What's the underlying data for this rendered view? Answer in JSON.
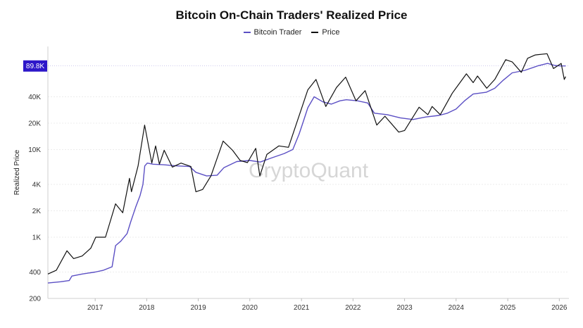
{
  "chart_data": {
    "type": "line",
    "title": "Bitcoin On-Chain Traders' Realized Price",
    "ylabel": "Realized Price",
    "xlabel": "",
    "y_scale": "log",
    "ylim": [
      200,
      150000
    ],
    "xlim": [
      "2016-02-01",
      "2026-03-10"
    ],
    "y_ticks": [
      200,
      400,
      1000,
      2000,
      4000,
      10000,
      20000,
      40000
    ],
    "y_tick_labels": [
      "200",
      "400",
      "1K",
      "2K",
      "4K",
      "10K",
      "20K",
      "40K"
    ],
    "x_ticks": [
      "2017-01-01",
      "2018-01-01",
      "2019-01-01",
      "2020-01-01",
      "2021-01-01",
      "2022-01-01",
      "2023-01-01",
      "2024-01-01",
      "2025-01-01",
      "2026-01-01"
    ],
    "x_tick_labels": [
      "2017",
      "2018",
      "2019",
      "2020",
      "2021",
      "2022",
      "2023",
      "2024",
      "2025",
      "2026"
    ],
    "grid": "horizontal",
    "legend_position": "top-center",
    "current_value_label": "89.8K",
    "watermark": "CryptoQuant",
    "series": [
      {
        "name": "Bitcoin Trader",
        "color": "#5b4fc4",
        "points": [
          [
            "2016-02-01",
            300
          ],
          [
            "2016-05-01",
            310
          ],
          [
            "2016-07-01",
            320
          ],
          [
            "2016-07-20",
            360
          ],
          [
            "2016-10-01",
            380
          ],
          [
            "2017-01-01",
            400
          ],
          [
            "2017-03-01",
            420
          ],
          [
            "2017-05-01",
            460
          ],
          [
            "2017-05-25",
            800
          ],
          [
            "2017-07-01",
            900
          ],
          [
            "2017-08-15",
            1100
          ],
          [
            "2017-09-10",
            1500
          ],
          [
            "2017-10-15",
            2200
          ],
          [
            "2017-11-15",
            3000
          ],
          [
            "2017-12-05",
            4000
          ],
          [
            "2017-12-18",
            6500
          ],
          [
            "2018-01-05",
            7000
          ],
          [
            "2018-02-15",
            6800
          ],
          [
            "2018-05-01",
            6700
          ],
          [
            "2018-08-01",
            6500
          ],
          [
            "2018-11-01",
            6400
          ],
          [
            "2018-12-15",
            5500
          ],
          [
            "2019-03-01",
            5000
          ],
          [
            "2019-05-15",
            5100
          ],
          [
            "2019-07-01",
            6200
          ],
          [
            "2019-10-01",
            7300
          ],
          [
            "2020-01-01",
            7500
          ],
          [
            "2020-03-15",
            7200
          ],
          [
            "2020-06-01",
            8000
          ],
          [
            "2020-09-01",
            9000
          ],
          [
            "2020-11-01",
            10000
          ],
          [
            "2020-12-15",
            15000
          ],
          [
            "2021-01-10",
            20000
          ],
          [
            "2021-02-15",
            30000
          ],
          [
            "2021-04-01",
            40000
          ],
          [
            "2021-06-01",
            35000
          ],
          [
            "2021-08-01",
            33000
          ],
          [
            "2021-10-01",
            36000
          ],
          [
            "2021-11-15",
            37000
          ],
          [
            "2022-02-01",
            36000
          ],
          [
            "2022-04-15",
            34000
          ],
          [
            "2022-06-01",
            26000
          ],
          [
            "2022-09-01",
            25000
          ],
          [
            "2022-12-01",
            23000
          ],
          [
            "2023-03-01",
            22000
          ],
          [
            "2023-06-01",
            23500
          ],
          [
            "2023-09-01",
            24500
          ],
          [
            "2023-11-01",
            26000
          ],
          [
            "2024-01-01",
            29000
          ],
          [
            "2024-03-01",
            36000
          ],
          [
            "2024-05-01",
            43000
          ],
          [
            "2024-08-01",
            45000
          ],
          [
            "2024-10-01",
            50000
          ],
          [
            "2024-12-01",
            62000
          ],
          [
            "2025-02-01",
            75000
          ],
          [
            "2025-05-01",
            80000
          ],
          [
            "2025-08-01",
            90000
          ],
          [
            "2025-10-10",
            96000
          ],
          [
            "2025-12-01",
            91000
          ],
          [
            "2026-01-01",
            90000
          ],
          [
            "2026-02-15",
            89800
          ]
        ]
      },
      {
        "name": "Price",
        "color": "#111111",
        "points": [
          [
            "2016-02-01",
            380
          ],
          [
            "2016-04-01",
            420
          ],
          [
            "2016-06-15",
            700
          ],
          [
            "2016-08-01",
            570
          ],
          [
            "2016-10-01",
            610
          ],
          [
            "2016-12-01",
            750
          ],
          [
            "2017-01-05",
            1000
          ],
          [
            "2017-03-15",
            1000
          ],
          [
            "2017-05-25",
            2400
          ],
          [
            "2017-07-15",
            1900
          ],
          [
            "2017-09-01",
            4700
          ],
          [
            "2017-09-15",
            3300
          ],
          [
            "2017-11-01",
            6500
          ],
          [
            "2017-12-17",
            19000
          ],
          [
            "2018-02-06",
            7000
          ],
          [
            "2018-03-05",
            11000
          ],
          [
            "2018-04-01",
            6800
          ],
          [
            "2018-05-05",
            9800
          ],
          [
            "2018-07-01",
            6300
          ],
          [
            "2018-09-01",
            7000
          ],
          [
            "2018-11-10",
            6400
          ],
          [
            "2018-12-15",
            3300
          ],
          [
            "2019-02-01",
            3500
          ],
          [
            "2019-04-01",
            5000
          ],
          [
            "2019-06-26",
            12500
          ],
          [
            "2019-09-01",
            9800
          ],
          [
            "2019-10-25",
            7500
          ],
          [
            "2019-12-15",
            7100
          ],
          [
            "2020-02-12",
            10300
          ],
          [
            "2020-03-12",
            5000
          ],
          [
            "2020-05-01",
            8800
          ],
          [
            "2020-07-25",
            11000
          ],
          [
            "2020-10-01",
            10600
          ],
          [
            "2020-12-31",
            29000
          ],
          [
            "2021-02-15",
            48000
          ],
          [
            "2021-04-14",
            63000
          ],
          [
            "2021-06-22",
            31000
          ],
          [
            "2021-09-06",
            51000
          ],
          [
            "2021-11-10",
            67000
          ],
          [
            "2022-01-22",
            36000
          ],
          [
            "2022-03-28",
            47000
          ],
          [
            "2022-06-18",
            19000
          ],
          [
            "2022-08-15",
            24000
          ],
          [
            "2022-11-21",
            15800
          ],
          [
            "2023-01-01",
            16500
          ],
          [
            "2023-04-14",
            30400
          ],
          [
            "2023-06-15",
            25000
          ],
          [
            "2023-07-15",
            31000
          ],
          [
            "2023-09-11",
            25000
          ],
          [
            "2023-12-05",
            44000
          ],
          [
            "2024-03-14",
            73000
          ],
          [
            "2024-05-01",
            58000
          ],
          [
            "2024-06-01",
            69000
          ],
          [
            "2024-08-05",
            50000
          ],
          [
            "2024-10-01",
            63000
          ],
          [
            "2024-12-17",
            106000
          ],
          [
            "2025-02-01",
            100000
          ],
          [
            "2025-04-07",
            76000
          ],
          [
            "2025-05-22",
            110000
          ],
          [
            "2025-07-14",
            120000
          ],
          [
            "2025-10-06",
            124000
          ],
          [
            "2025-11-21",
            84000
          ],
          [
            "2026-01-14",
            96000
          ],
          [
            "2026-02-05",
            63000
          ],
          [
            "2026-02-15",
            68000
          ]
        ]
      }
    ]
  }
}
